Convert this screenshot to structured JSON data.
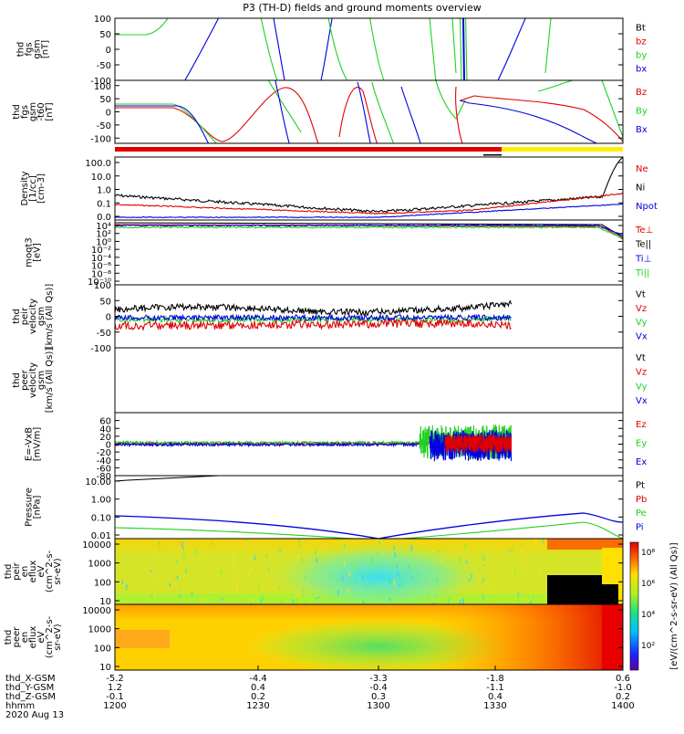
{
  "title": "P3 (TH-D) fields and ground moments overview",
  "date": "2020 Aug 13",
  "colors": {
    "black": "#000000",
    "red": "#e00000",
    "green": "#20d020",
    "blue": "#0000e0",
    "yellow": "#ffee00"
  },
  "chart_data": [
    {
      "id": "fgs-gsm",
      "type": "line",
      "ylabel_lines": [
        "thd",
        "fgs",
        "gsm",
        "[nT]"
      ],
      "yticks": [
        100,
        50,
        0,
        -50,
        -100
      ],
      "ylim": [
        -100,
        100
      ],
      "legend": [
        {
          "label": "Bt",
          "color": "black"
        },
        {
          "label": "bz",
          "color": "red"
        },
        {
          "label": "by",
          "color": "green"
        },
        {
          "label": "bx",
          "color": "blue"
        }
      ]
    },
    {
      "id": "fgs-gsm-smooth",
      "type": "line",
      "ylabel_lines": [
        "thd",
        "fgs",
        "gsm",
        "-t60",
        "[nT]"
      ],
      "yticks": [
        100,
        50,
        0,
        -50,
        -100
      ],
      "ylim": [
        -120,
        120
      ],
      "legend": [
        {
          "label": "Bz",
          "color": "red"
        },
        {
          "label": "By",
          "color": "green"
        },
        {
          "label": "Bx",
          "color": "blue"
        }
      ]
    },
    {
      "id": "density",
      "type": "line",
      "scale": "log",
      "ylabel_lines": [
        "Density",
        "[1/cc]",
        "[cm-3]"
      ],
      "yticks": [
        "100.0",
        "10.0",
        "1.0",
        "0.1",
        "0.0"
      ],
      "legend": [
        {
          "label": "Ne",
          "color": "red"
        },
        {
          "label": "Ni",
          "color": "black"
        },
        {
          "label": "Npot",
          "color": "blue"
        }
      ]
    },
    {
      "id": "temperature",
      "type": "line",
      "scale": "log",
      "ylabel_lines": [
        "moqt3",
        "[eV]"
      ],
      "yticks": [
        "10⁴",
        "10²",
        "10⁰",
        "10⁻²",
        "10⁻⁴",
        "10⁻⁶",
        "10⁻⁸",
        "10⁻¹⁰"
      ],
      "legend": [
        {
          "label": "Te⊥",
          "color": "red"
        },
        {
          "label": "Te||",
          "color": "black"
        },
        {
          "label": "Ti⊥",
          "color": "blue"
        },
        {
          "label": "Ti||",
          "color": "green"
        }
      ]
    },
    {
      "id": "peir-velocity",
      "type": "line",
      "ylabel_lines": [
        "thd",
        "peir",
        "velocity",
        "gsm",
        "[km/s (All Qs)]"
      ],
      "yticks": [
        100,
        50,
        0,
        -50,
        -100
      ],
      "ylim": [
        -100,
        100
      ],
      "legend": [
        {
          "label": "Vt",
          "color": "black"
        },
        {
          "label": "Vz",
          "color": "red"
        },
        {
          "label": "Vy",
          "color": "green"
        },
        {
          "label": "Vx",
          "color": "blue"
        }
      ]
    },
    {
      "id": "peer-velocity",
      "type": "line",
      "ylabel_lines": [
        "thd",
        "peer",
        "velocity",
        "gsm",
        "[km/s (All Qs)]"
      ],
      "yticks": [],
      "ylim": [
        -100,
        100
      ],
      "legend": [
        {
          "label": "Vt",
          "color": "black"
        },
        {
          "label": "Vz",
          "color": "red"
        },
        {
          "label": "Vy",
          "color": "green"
        },
        {
          "label": "Vx",
          "color": "blue"
        }
      ]
    },
    {
      "id": "efield",
      "type": "line",
      "ylabel_lines": [
        "E=-VxB",
        "[mV/m]"
      ],
      "yticks": [
        60,
        40,
        20,
        0,
        -20,
        -40,
        -60,
        -80
      ],
      "ylim": [
        -80,
        80
      ],
      "legend": [
        {
          "label": "Ez",
          "color": "red"
        },
        {
          "label": "Ey",
          "color": "green"
        },
        {
          "label": "Ex",
          "color": "blue"
        }
      ]
    },
    {
      "id": "pressure",
      "type": "line",
      "scale": "log",
      "ylabel_lines": [
        "Pressure",
        "[nPa]"
      ],
      "yticks": [
        "10.00",
        "1.00",
        "0.10",
        "0.01"
      ],
      "legend": [
        {
          "label": "Pt",
          "color": "black"
        },
        {
          "label": "Pb",
          "color": "red"
        },
        {
          "label": "Pe",
          "color": "green"
        },
        {
          "label": "Pi",
          "color": "blue"
        }
      ]
    },
    {
      "id": "peir-spectrogram",
      "type": "heatmap",
      "ylabel_lines": [
        "thd",
        "peir",
        "en",
        "eflux",
        "eV",
        "(cm^2-s-",
        "sr-eV)"
      ],
      "yticks": [
        "10000",
        "1000",
        "100",
        "10"
      ]
    },
    {
      "id": "peer-spectrogram",
      "type": "heatmap",
      "ylabel_lines": [
        "thd",
        "peer",
        "en",
        "eflux",
        "eV",
        "(cm^2-s-",
        "sr-eV)"
      ],
      "yticks": [
        "10000",
        "1000",
        "100",
        "10"
      ]
    }
  ],
  "colorbar": {
    "label": "[eV/(cm^2-s-sr-eV) (All Qs)]",
    "ticks": [
      "10⁸",
      "10⁶",
      "10⁴",
      "10²"
    ]
  },
  "xaxis": {
    "row_labels": [
      "thd_X-GSM",
      "thd_Y-GSM",
      "thd_Z-GSM",
      "hhmm"
    ],
    "date_label": "2020 Aug 13",
    "ticks": [
      {
        "values": [
          "-5.2",
          "1.2",
          "-0.1",
          "1200"
        ]
      },
      {
        "values": [
          "-4.4",
          "0.4",
          "0.2",
          "1230"
        ]
      },
      {
        "values": [
          "-3.3",
          "-0.4",
          "0.3",
          "1300"
        ]
      },
      {
        "values": [
          "-1.8",
          "-1.1",
          "0.4",
          "1330"
        ]
      },
      {
        "values": [
          "0.6",
          "-1.0",
          "0.2",
          "1400"
        ]
      }
    ]
  }
}
